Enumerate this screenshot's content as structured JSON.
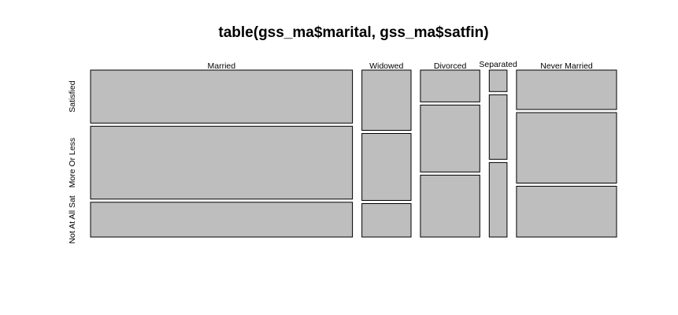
{
  "chart_data": {
    "type": "mosaic",
    "title": "table(gss_ma$marital, gss_ma$satfin)",
    "xlabel": "",
    "ylabel": "",
    "categories": [
      "Married",
      "Widowed",
      "Divorced",
      "Separated",
      "Never Married"
    ],
    "levels": [
      "Satisfied",
      "More Or Less",
      "Not At All Sat"
    ],
    "column_proportions": [
      0.56,
      0.105,
      0.127,
      0.038,
      0.214
    ],
    "cell_proportions": [
      [
        0.32,
        0.44,
        0.21
      ],
      [
        0.36,
        0.4,
        0.2
      ],
      [
        0.19,
        0.4,
        0.37
      ],
      [
        0.13,
        0.39,
        0.45
      ],
      [
        0.24,
        0.43,
        0.31
      ]
    ],
    "fill_color": "#bebebe",
    "border_color": "#000000"
  }
}
